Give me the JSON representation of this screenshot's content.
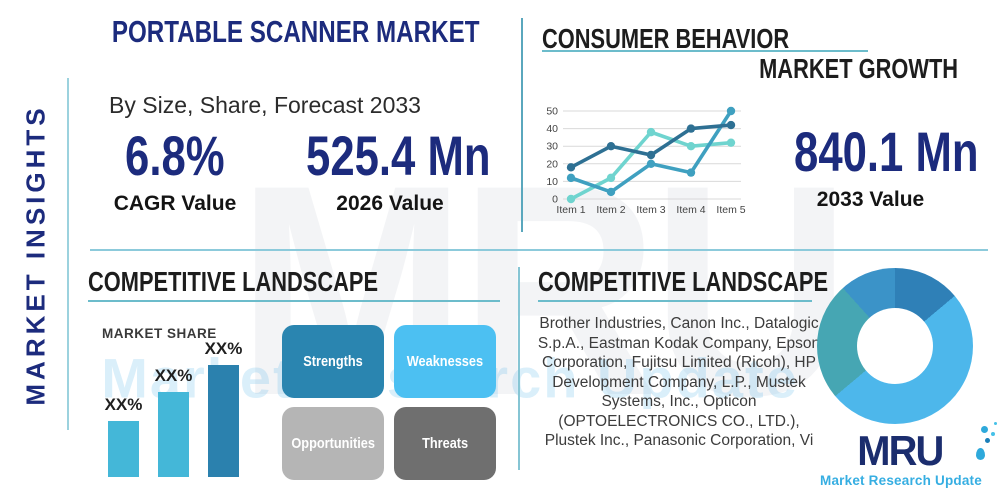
{
  "sidebar": {
    "label": "MARKET INSIGHTS"
  },
  "header": {
    "title": "PORTABLE SCANNER MARKET",
    "subtitle": "By Size, Share, Forecast 2033"
  },
  "stats": {
    "cagr": {
      "value": "6.8%",
      "label": "CAGR Value"
    },
    "y2026": {
      "value": "525.4 Mn",
      "label": "2026 Value"
    },
    "y2033": {
      "value": "840.1 Mn",
      "label": "2033 Value"
    }
  },
  "sections": {
    "consumer_behavior": "CONSUMER BEHAVIOR",
    "market_growth": "MARKET GROWTH",
    "competitive_landscape_left": "COMPETITIVE LANDSCAPE",
    "competitive_landscape_right": "COMPETITIVE LANDSCAPE"
  },
  "chart_data": [
    {
      "id": "consumer-behavior-line",
      "type": "line",
      "x": [
        "Item 1",
        "Item 2",
        "Item 3",
        "Item 4",
        "Item 5"
      ],
      "series": [
        {
          "name": "dark-blue",
          "color": "#2e7093",
          "values": [
            18,
            30,
            25,
            40,
            42
          ]
        },
        {
          "name": "medium-teal",
          "color": "#3fa0c0",
          "values": [
            12,
            4,
            20,
            15,
            50
          ]
        },
        {
          "name": "light-teal",
          "color": "#6fd4cf",
          "values": [
            0,
            12,
            38,
            30,
            32
          ]
        }
      ],
      "ylim": [
        0,
        50
      ],
      "yticks": [
        0,
        10,
        20,
        30,
        40,
        50
      ],
      "grid": true,
      "legend": false
    },
    {
      "id": "market-share-bar",
      "type": "bar",
      "title": "MARKET SHARE",
      "labels": [
        "XX%",
        "XX%",
        "XX%"
      ],
      "relative_heights": [
        0.5,
        0.76,
        1.0
      ],
      "colors": [
        "#44b7d8",
        "#44b7d8",
        "#2b81ae"
      ]
    },
    {
      "id": "company-share-donut",
      "type": "donut",
      "segments": [
        {
          "name": "dark-blue",
          "color": "#2f80b7",
          "start_deg": 0,
          "end_deg": 50
        },
        {
          "name": "light-blue",
          "color": "#4db7eb",
          "start_deg": 50,
          "end_deg": 230
        },
        {
          "name": "teal",
          "color": "#46a6b3",
          "start_deg": 230,
          "end_deg": 318
        },
        {
          "name": "medium-blue",
          "color": "#3b93c8",
          "start_deg": 318,
          "end_deg": 360
        }
      ]
    }
  ],
  "market_share_title": "MARKET SHARE",
  "swot": {
    "items": [
      {
        "label": "Strengths",
        "color": "#2a85b0"
      },
      {
        "label": "Weaknesses",
        "color": "#4cc0f2"
      },
      {
        "label": "Opportunities",
        "color": "#b5b5b5"
      },
      {
        "label": "Threats",
        "color": "#6f6f6f"
      }
    ]
  },
  "companies": "Brother Industries, Canon Inc., Datalogic S.p.A., Eastman Kodak Company, Epson Corporation, Fujitsu Limited (Ricoh), HP Development Company, L.P., Mustek Systems, Inc., Opticon (OPTOELECTRONICS CO., LTD.), Plustek Inc., Panasonic Corporation, Vi",
  "logo": {
    "name": "MRU",
    "tagline": "Market Research Update"
  },
  "watermark": {
    "letters": "MRU",
    "text": "Market Research Update"
  },
  "colors": {
    "navy": "#1c2b7d",
    "heading_black": "#1d1d1d",
    "underline_teal": "#6cbccb",
    "divider_teal": "#5aa7bd",
    "logo_navy": "#1b2d6e",
    "logo_blue": "#36aee2"
  }
}
